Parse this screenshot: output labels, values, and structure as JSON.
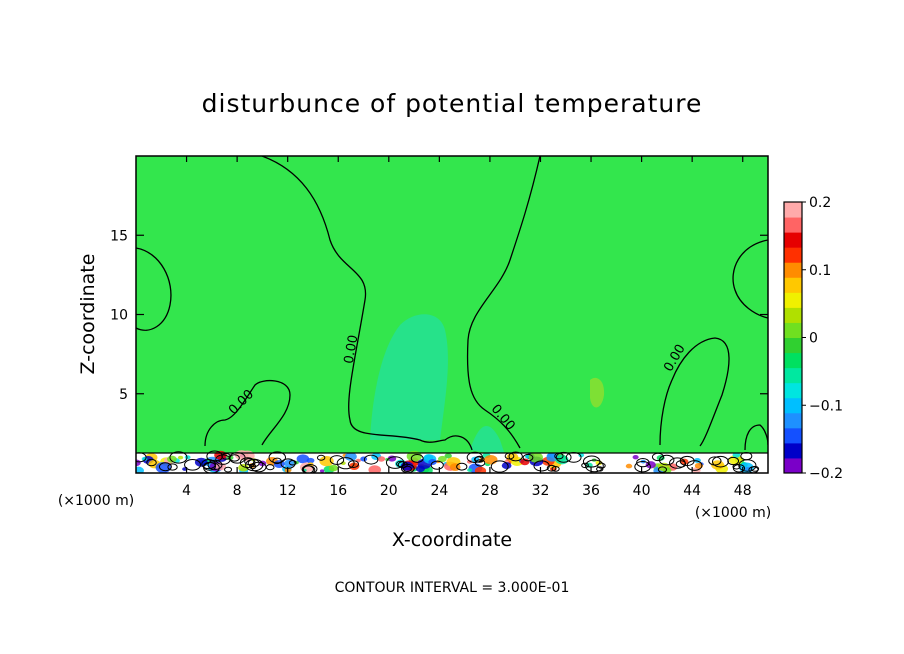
{
  "chart_data": {
    "type": "heatmap",
    "title": "disturbunce of potential temperature",
    "xlabel": "X-coordinate",
    "ylabel": "Z-coordinate",
    "x_unit": "(×1000 m)",
    "y_unit": "(×1000 m)",
    "xlim": [
      0,
      50
    ],
    "ylim": [
      0,
      20
    ],
    "x_ticks": [
      4,
      8,
      12,
      16,
      20,
      24,
      28,
      32,
      36,
      40,
      44,
      48
    ],
    "y_ticks": [
      5,
      10,
      15
    ],
    "contour_label": "0.00",
    "contour_level": 0.0,
    "contour_interval_text": "CONTOUR INTERVAL = 3.000E-01",
    "colorbar": {
      "ticks": [
        0.2,
        0.1,
        0,
        -0.1,
        -0.2
      ],
      "tick_labels": [
        "0.2",
        "0.1",
        "0",
        "−0.1",
        "−0.2"
      ],
      "range": [
        -0.2,
        0.2
      ],
      "colors": [
        "#7a00c8",
        "#0000c8",
        "#1450ff",
        "#1e90ff",
        "#00bfff",
        "#00e5e0",
        "#00e8a0",
        "#00e060",
        "#30d030",
        "#70e020",
        "#b0e000",
        "#f0f000",
        "#ffc800",
        "#ff8c00",
        "#ff3000",
        "#e60000",
        "#ff6464",
        "#ffaaaa"
      ]
    },
    "colors": {
      "background_field": "#33e64d",
      "negative_band": "#26e28a",
      "contour_line": "#000000"
    }
  }
}
